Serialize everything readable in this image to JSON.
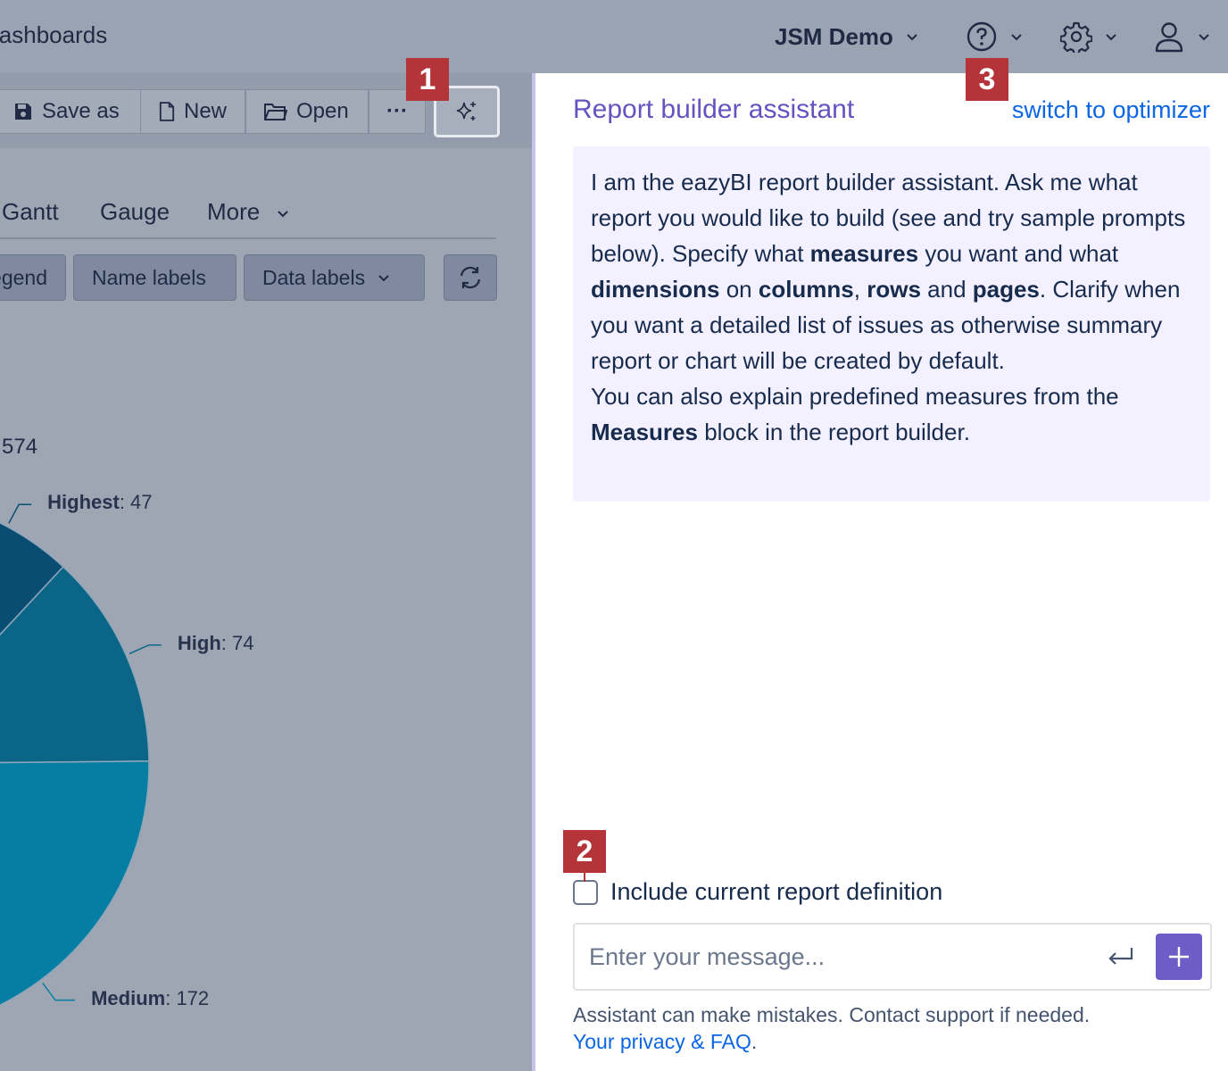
{
  "topbar": {
    "breadcrumb": "Dashboards",
    "project": "JSM Demo",
    "icons": [
      "help-icon",
      "gear-icon",
      "user-icon"
    ]
  },
  "toolbar": {
    "save_as": "Save as",
    "new": "New",
    "open": "Open",
    "more": "···"
  },
  "chart_tabs": {
    "gantt": "Gantt",
    "gauge": "Gauge",
    "more": "More"
  },
  "chart_options": {
    "legend": "Legend",
    "name_labels": "Name labels",
    "data_labels": "Data labels"
  },
  "chart": {
    "total_fragment": "574"
  },
  "chart_data": {
    "type": "pie",
    "title": "",
    "categories": [
      "Highest",
      "High",
      "Medium"
    ],
    "values": [
      47,
      74,
      172
    ],
    "visible_total_fragment": "574",
    "colors": [
      "#0a4d72",
      "#0b6587",
      "#067ea3"
    ]
  },
  "assistant": {
    "title": "Report builder assistant",
    "switch_link": "switch to optimizer",
    "intro": {
      "t1": "I am the eazyBI report builder assistant. Ask me what report you would like to build (see and try sample prompts below). Specify what ",
      "b1": "measures",
      "t2": " you want and what ",
      "b2": "dimensions",
      "t3": " on ",
      "b3": "columns",
      "t4": ", ",
      "b4": "rows",
      "t5": " and ",
      "b5": "pages",
      "t6": ". Clarify when you want a detailed list of issues as otherwise summary report or chart will be created by default.",
      "t7": "You can also explain predefined measures from the ",
      "b7": "Measures",
      "t8": " block in the report builder."
    },
    "include_label": "Include current report definition",
    "include_checked": false,
    "input_placeholder": "Enter your message...",
    "disclaimer": "Assistant can make mistakes. Contact support if needed.",
    "privacy_link": "Your privacy & FAQ",
    "privacy_suffix": "."
  },
  "markers": {
    "m1": "1",
    "m2": "2",
    "m3": "3",
    "color": "#b4343a"
  },
  "colors": {
    "accent_purple": "#6554c0",
    "link_blue": "#0c66e4",
    "message_bg": "#f3f0ff"
  }
}
